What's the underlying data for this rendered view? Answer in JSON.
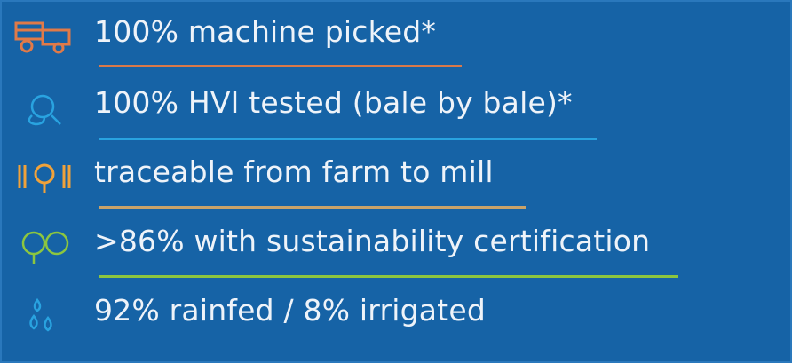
{
  "items": [
    {
      "text": "100% machine picked*"
    },
    {
      "text": "100% HVI tested (bale by bale)*"
    },
    {
      "text": "traceable from farm to mill"
    },
    {
      "text": ">86% with sustainability certification"
    },
    {
      "text": "92% rainfed / 8% irrigated"
    }
  ]
}
